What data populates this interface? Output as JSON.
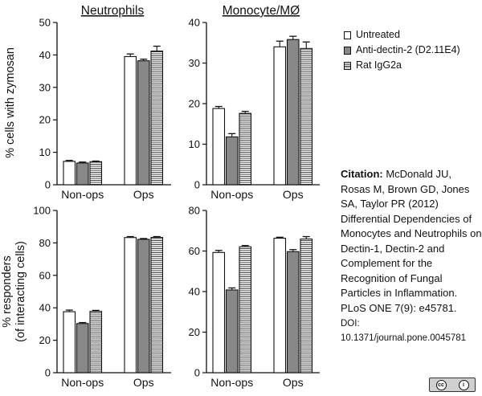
{
  "panel_titles": {
    "neutrophils": "Neutrophils",
    "monocyte": "Monocyte/MØ"
  },
  "y_labels": {
    "top": "% cells with zymosan",
    "bottom_line1": "% responders",
    "bottom_line2": "(of interacting cells)"
  },
  "legend": {
    "untreated": "Untreated",
    "anti": "Anti-dectin-2 (D2.11E4)",
    "rat": "Rat IgG2a"
  },
  "citation": {
    "label": "Citation:",
    "text": "McDonald JU, Rosas M, Brown GD, Jones SA, Taylor PR (2012) Differential Dependencies of Monocytes and Neutrophils on Dectin-1, Dectin-2 and Complement for the Recognition of Fungal Particles in Inflammation.",
    "journal": "PLoS ONE 7(9): e45781.",
    "doi_label": "DOI:",
    "doi": "10.1371/journal.pone.0045781"
  },
  "license": {
    "cc": "cc",
    "by": "i",
    "color": "#cfd1cf"
  },
  "colors": {
    "untreated": "#ffffff",
    "anti": "#888888",
    "rat": "hatched",
    "axis": "#111111"
  },
  "chart_data": [
    {
      "type": "bar",
      "title": "Neutrophils",
      "ylabel": "% cells with zymosan",
      "xlabel": "",
      "categories": [
        "Non-ops",
        "Ops"
      ],
      "ylim": [
        0,
        50
      ],
      "yticks": [
        0,
        10,
        20,
        30,
        40,
        50
      ],
      "series": [
        {
          "name": "Untreated",
          "values": [
            7.2,
            39.5
          ],
          "errors": [
            0.3,
            0.8
          ]
        },
        {
          "name": "Anti-dectin-2 (D2.11E4)",
          "values": [
            6.7,
            38.2
          ],
          "errors": [
            0.3,
            0.5
          ]
        },
        {
          "name": "Rat IgG2a",
          "values": [
            7.1,
            41.2
          ],
          "errors": [
            0.2,
            1.5
          ]
        }
      ]
    },
    {
      "type": "bar",
      "title": "Monocyte/MØ",
      "ylabel": "",
      "xlabel": "",
      "categories": [
        "Non-ops",
        "Ops"
      ],
      "ylim": [
        0,
        40
      ],
      "yticks": [
        0,
        10,
        20,
        30,
        40
      ],
      "series": [
        {
          "name": "Untreated",
          "values": [
            18.8,
            34.0
          ],
          "errors": [
            0.5,
            1.4
          ]
        },
        {
          "name": "Anti-dectin-2 (D2.11E4)",
          "values": [
            11.8,
            35.8
          ],
          "errors": [
            0.8,
            0.8
          ]
        },
        {
          "name": "Rat IgG2a",
          "values": [
            17.6,
            33.6
          ],
          "errors": [
            0.5,
            1.6
          ]
        }
      ]
    },
    {
      "type": "bar",
      "title": "",
      "ylabel": "% responders (of interacting cells)",
      "xlabel": "",
      "categories": [
        "Non-ops",
        "Ops"
      ],
      "ylim": [
        0,
        100
      ],
      "yticks": [
        0,
        20,
        40,
        60,
        80,
        100
      ],
      "series": [
        {
          "name": "Untreated",
          "values": [
            37.6,
            83.3
          ],
          "errors": [
            1.0,
            0.6
          ]
        },
        {
          "name": "Anti-dectin-2 (D2.11E4)",
          "values": [
            30.3,
            82.2
          ],
          "errors": [
            0.6,
            0.5
          ]
        },
        {
          "name": "Rat IgG2a",
          "values": [
            37.8,
            83.4
          ],
          "errors": [
            0.6,
            0.5
          ]
        }
      ]
    },
    {
      "type": "bar",
      "title": "",
      "ylabel": "",
      "xlabel": "",
      "categories": [
        "Non-ops",
        "Ops"
      ],
      "ylim": [
        0,
        80
      ],
      "yticks": [
        0,
        20,
        40,
        60,
        80
      ],
      "series": [
        {
          "name": "Untreated",
          "values": [
            59.3,
            66.3
          ],
          "errors": [
            1.0,
            0.5
          ]
        },
        {
          "name": "Anti-dectin-2 (D2.11E4)",
          "values": [
            40.8,
            59.7
          ],
          "errors": [
            1.0,
            1.0
          ]
        },
        {
          "name": "Rat IgG2a",
          "values": [
            62.1,
            65.9
          ],
          "errors": [
            0.6,
            1.2
          ]
        }
      ]
    }
  ]
}
